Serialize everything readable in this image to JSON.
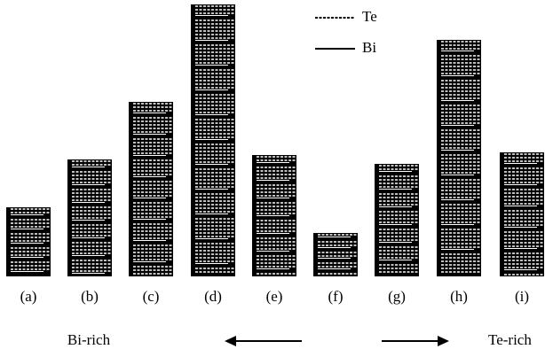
{
  "legend": {
    "te": "Te",
    "bi": "Bi"
  },
  "columns": [
    {
      "label": "(a)"
    },
    {
      "label": "(b)"
    },
    {
      "label": "(c)"
    },
    {
      "label": "(d)"
    },
    {
      "label": "(e)"
    },
    {
      "label": "(f)"
    },
    {
      "label": "(g)"
    },
    {
      "label": "(h)"
    },
    {
      "label": "(i)"
    }
  ],
  "directions": {
    "left": "Bi-rich",
    "right": "Te-rich"
  }
}
